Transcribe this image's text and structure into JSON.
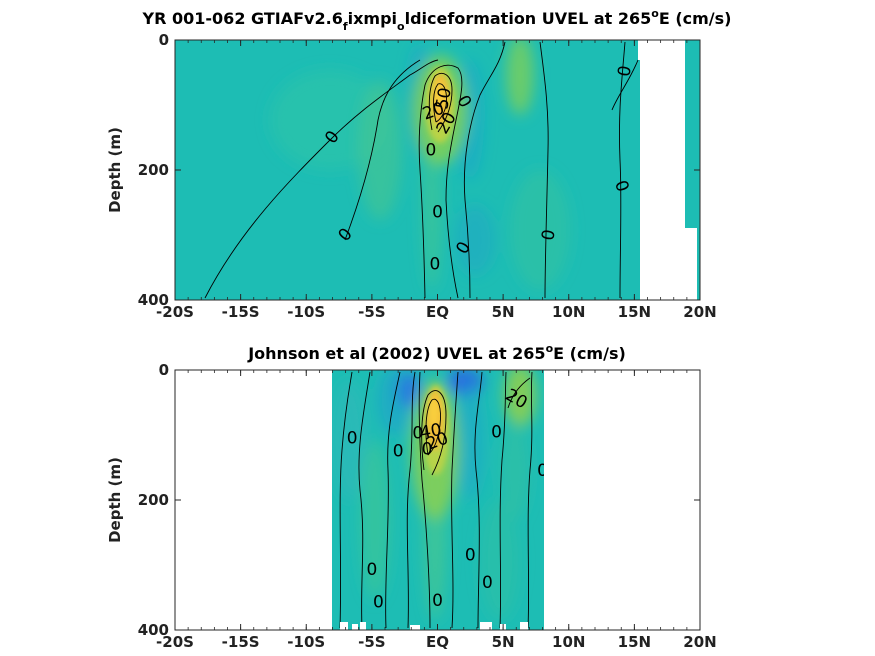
{
  "chart_data": [
    {
      "type": "heatmap",
      "title_main": "YR 001-062 GTIAFv2.6",
      "title_sub1": "f",
      "title_mid": "ixmpi",
      "title_sub2": "o",
      "title_end": "ldiceformation UVEL at 265",
      "title_sup": "o",
      "title_unit": "E (cm/s)",
      "ylabel": "Depth (m)",
      "xticks": [
        "-20S",
        "-15S",
        "-10S",
        "-5S",
        "EQ",
        "5N",
        "10N",
        "15N",
        "20N"
      ],
      "yticks": [
        "0",
        "200",
        "400"
      ],
      "xlim": [
        -20,
        20
      ],
      "ylim": [
        0,
        400
      ],
      "contour_labels": [
        {
          "text": "0",
          "x": -8,
          "y": 150,
          "rot": -55
        },
        {
          "text": "0",
          "x": -7,
          "y": 300,
          "rot": -50
        },
        {
          "text": "0",
          "x": -0.5,
          "y": 170,
          "rot": 0
        },
        {
          "text": "50",
          "x": 0.5,
          "y": 90,
          "rot": -80
        },
        {
          "text": "20",
          "x": 0.7,
          "y": 128,
          "rot": -60
        },
        {
          "text": "20",
          "x": -0.3,
          "y": 110,
          "rot": -20
        },
        {
          "text": "0",
          "x": 0,
          "y": 265,
          "rot": 0
        },
        {
          "text": "0",
          "x": -0.2,
          "y": 345,
          "rot": 0
        },
        {
          "text": "0",
          "x": 2,
          "y": 320,
          "rot": -60
        },
        {
          "text": "0",
          "x": 2,
          "y": 95,
          "rot": 60
        },
        {
          "text": "0",
          "x": 8.5,
          "y": 300,
          "rot": -80
        },
        {
          "text": "0",
          "x": 14,
          "y": 225,
          "rot": 70
        },
        {
          "text": "0",
          "x": 14.3,
          "y": 48,
          "rot": -80
        }
      ],
      "colors": {
        "background": "#1dbdb4",
        "core": "#f5c73a",
        "mid": "#7dcc55",
        "low": "#2b8fd6"
      }
    },
    {
      "type": "heatmap",
      "title_main": "Johnson et al (2002) UVEL at 265",
      "title_sup": "o",
      "title_unit": "E (cm/s)",
      "ylabel": "Depth (m)",
      "xticks": [
        "-20S",
        "-15S",
        "-10S",
        "-5S",
        "EQ",
        "5N",
        "10N",
        "15N",
        "20N"
      ],
      "yticks": [
        "0",
        "200",
        "400"
      ],
      "xlim": [
        -20,
        20
      ],
      "ylim": [
        0,
        400
      ],
      "data_xlim": [
        -8,
        8
      ],
      "contour_labels": [
        {
          "text": "0",
          "x": -6.5,
          "y": 105,
          "rot": 0
        },
        {
          "text": "0",
          "x": -3,
          "y": 125,
          "rot": 0
        },
        {
          "text": "0",
          "x": -1.5,
          "y": 98,
          "rot": 0
        },
        {
          "text": "40",
          "x": -0.5,
          "y": 95,
          "rot": -10
        },
        {
          "text": "20",
          "x": 0,
          "y": 110,
          "rot": -20
        },
        {
          "text": "0",
          "x": -0.8,
          "y": 122,
          "rot": 0
        },
        {
          "text": "20",
          "x": 6,
          "y": 45,
          "rot": 30
        },
        {
          "text": "0",
          "x": 4.5,
          "y": 96,
          "rot": 0
        },
        {
          "text": "0",
          "x": 8,
          "y": 155,
          "rot": 0
        },
        {
          "text": "0",
          "x": 2.5,
          "y": 285,
          "rot": 0
        },
        {
          "text": "0",
          "x": 3.8,
          "y": 328,
          "rot": 0
        },
        {
          "text": "0",
          "x": -5,
          "y": 308,
          "rot": 0
        },
        {
          "text": "0",
          "x": -4.5,
          "y": 358,
          "rot": 0
        },
        {
          "text": "0",
          "x": 0,
          "y": 355,
          "rot": 0
        }
      ],
      "colors": {
        "background": "#1dbdb4",
        "core": "#f5c73a",
        "mid": "#7dcc55",
        "low": "#2b8fd6"
      }
    }
  ]
}
